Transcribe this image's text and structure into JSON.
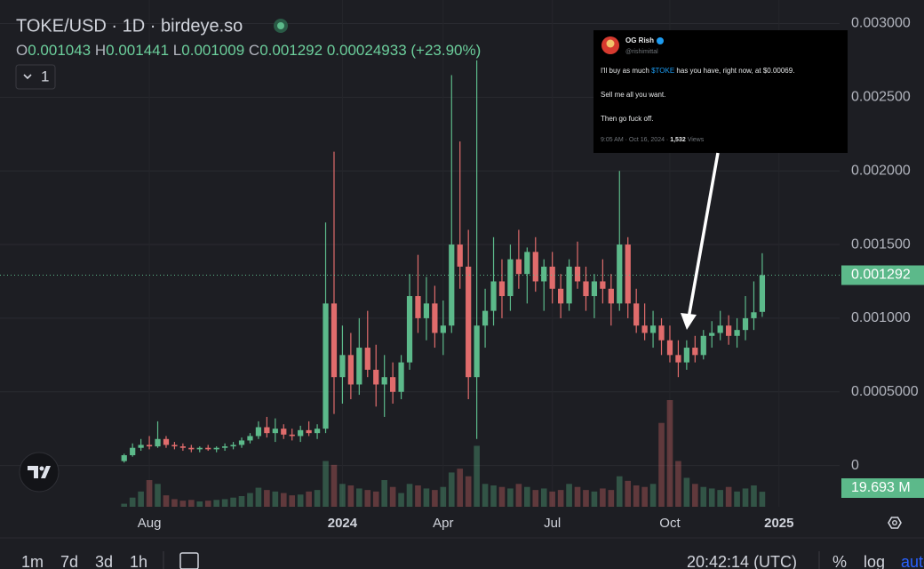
{
  "chart_data": {
    "type": "candlestick",
    "title": "TOKE/USD · 1D · birdeye.so",
    "ohlc_legend": [
      {
        "key": "O",
        "value": "0.001043"
      },
      {
        "key": "H",
        "value": "0.001441"
      },
      {
        "key": "L",
        "value": "0.001009"
      },
      {
        "key": "C",
        "value": "0.001292"
      }
    ],
    "change": "0.00024933 (+23.90%)",
    "interval_button": "1",
    "categories": [
      null,
      null,
      null,
      "Aug",
      null,
      null,
      null,
      null,
      null,
      null,
      null,
      null,
      null,
      null,
      null,
      null,
      null,
      null,
      null,
      null,
      null,
      null,
      null,
      null,
      null,
      null,
      "2024",
      null,
      null,
      null,
      null,
      null,
      null,
      null,
      null,
      null,
      null,
      null,
      "Apr",
      null,
      null,
      null,
      null,
      null,
      null,
      null,
      null,
      null,
      null,
      null,
      null,
      "Jul",
      null,
      null,
      null,
      null,
      null,
      null,
      null,
      null,
      null,
      null,
      null,
      null,
      null,
      "Oct",
      null,
      null,
      null,
      null,
      null,
      null,
      null,
      null,
      null,
      null,
      null,
      null,
      "2025"
    ],
    "open": [
      3e-05,
      7e-05,
      0.00012,
      0.00014,
      0.00013,
      0.00018,
      0.00014,
      0.00013,
      0.00012,
      0.00011,
      0.00012,
      0.00011,
      0.00012,
      0.00013,
      0.00014,
      0.00017,
      0.0002,
      0.00026,
      0.00022,
      0.00025,
      0.00021,
      0.0002,
      0.00024,
      0.00022,
      0.00025,
      0.0011,
      0.0006,
      0.00075,
      0.00055,
      0.0008,
      0.00065,
      0.00055,
      0.0006,
      0.0005,
      0.0007,
      0.00115,
      0.001,
      0.0011,
      0.0009,
      0.00095,
      0.0015,
      0.00135,
      0.0006,
      0.00095,
      0.00105,
      0.00125,
      0.00115,
      0.0014,
      0.0013,
      0.00145,
      0.00125,
      0.00135,
      0.0012,
      0.0011,
      0.00135,
      0.00125,
      0.00115,
      0.00125,
      0.0012,
      0.0011,
      0.0015,
      0.0011,
      0.00095,
      0.0009,
      0.00095,
      0.00085,
      0.00075,
      0.0007,
      0.0008,
      0.00075,
      0.00088,
      0.0009,
      0.00095,
      0.00088,
      0.00092,
      0.001,
      0.001043,
      null,
      null
    ],
    "high": [
      8e-05,
      0.00015,
      0.00018,
      0.0002,
      0.0003,
      0.0002,
      0.00016,
      0.00015,
      0.00014,
      0.00013,
      0.00014,
      0.00013,
      0.00015,
      0.00016,
      0.00019,
      0.00022,
      0.0003,
      0.00033,
      0.00032,
      0.00028,
      0.00025,
      0.00027,
      0.0003,
      0.00028,
      0.00165,
      0.00213,
      0.00095,
      0.0009,
      0.001,
      0.00105,
      0.00082,
      0.00075,
      0.0007,
      0.00075,
      0.0013,
      0.00143,
      0.00128,
      0.00122,
      0.00112,
      0.00265,
      0.0022,
      0.0016,
      0.00275,
      0.0012,
      0.00155,
      0.0014,
      0.0015,
      0.0016,
      0.00148,
      0.00155,
      0.0014,
      0.00145,
      0.0013,
      0.0014,
      0.00152,
      0.00135,
      0.0013,
      0.0014,
      0.0013,
      0.002,
      0.00155,
      0.0012,
      0.0011,
      0.00105,
      0.001,
      0.00095,
      0.00085,
      0.00085,
      0.00088,
      0.00092,
      0.00098,
      0.00105,
      0.00102,
      0.001,
      0.00115,
      0.00125,
      0.001441,
      null,
      null
    ],
    "low": [
      2e-05,
      6e-05,
      0.0001,
      0.00011,
      0.00012,
      0.00012,
      0.00011,
      0.0001,
      9e-05,
      9e-05,
      0.0001,
      9e-05,
      0.0001,
      0.00011,
      0.00012,
      0.00015,
      0.00018,
      0.00019,
      0.00016,
      0.00018,
      0.00017,
      0.00016,
      0.0002,
      0.00018,
      0.00022,
      0.00035,
      0.00042,
      0.00045,
      0.00048,
      0.0006,
      0.0004,
      0.00033,
      0.00042,
      0.00045,
      0.00065,
      0.0009,
      0.00085,
      0.0008,
      0.00075,
      0.0009,
      0.0012,
      0.00045,
      0.00018,
      0.0008,
      0.00095,
      0.001,
      0.00105,
      0.0012,
      0.0011,
      0.00118,
      0.00105,
      0.0011,
      0.001,
      0.00105,
      0.0012,
      0.00105,
      0.001,
      0.0011,
      0.00095,
      0.00105,
      0.001,
      0.0009,
      0.00085,
      0.0008,
      0.00075,
      0.0007,
      0.0006,
      0.00065,
      0.0007,
      0.00072,
      0.0008,
      0.00085,
      0.00082,
      0.0008,
      0.00085,
      0.00092,
      0.001009,
      null,
      null
    ],
    "close": [
      7e-05,
      0.00012,
      0.00014,
      0.00013,
      0.00018,
      0.00014,
      0.00013,
      0.00012,
      0.00011,
      0.00012,
      0.00011,
      0.00012,
      0.00013,
      0.00014,
      0.00017,
      0.0002,
      0.00026,
      0.00022,
      0.00025,
      0.00021,
      0.0002,
      0.00024,
      0.00022,
      0.00025,
      0.0011,
      0.0006,
      0.00075,
      0.00055,
      0.0008,
      0.00065,
      0.00055,
      0.0006,
      0.0005,
      0.0007,
      0.00115,
      0.001,
      0.0011,
      0.0009,
      0.00095,
      0.0015,
      0.00135,
      0.0006,
      0.00095,
      0.00105,
      0.00125,
      0.00115,
      0.0014,
      0.0013,
      0.00145,
      0.00125,
      0.00135,
      0.0012,
      0.0011,
      0.00135,
      0.00125,
      0.00115,
      0.00125,
      0.0012,
      0.0011,
      0.0015,
      0.0011,
      0.00095,
      0.0009,
      0.00095,
      0.00085,
      0.00075,
      0.0007,
      0.0008,
      0.00075,
      0.00088,
      0.0009,
      0.00095,
      0.00088,
      0.00092,
      0.001,
      0.00104,
      0.001292,
      null,
      null
    ],
    "volume": {
      "values": [
        4,
        12,
        20,
        35,
        30,
        15,
        10,
        8,
        9,
        7,
        8,
        9,
        10,
        12,
        14,
        18,
        25,
        22,
        20,
        18,
        15,
        16,
        20,
        22,
        60,
        55,
        30,
        28,
        24,
        22,
        20,
        35,
        26,
        18,
        30,
        28,
        24,
        22,
        26,
        45,
        50,
        40,
        80,
        30,
        28,
        26,
        24,
        30,
        26,
        22,
        24,
        20,
        22,
        30,
        26,
        22,
        20,
        24,
        22,
        40,
        34,
        28,
        26,
        30,
        110,
        140,
        60,
        38,
        30,
        26,
        24,
        22,
        26,
        20,
        24,
        28,
        19.693,
        null,
        null
      ],
      "value_labels": [
        null,
        null,
        null,
        null,
        null,
        null,
        null,
        null,
        null,
        null,
        null,
        null,
        null,
        null,
        null,
        null,
        null,
        null,
        null,
        null,
        null,
        null,
        null,
        null,
        null,
        null,
        null,
        null,
        null,
        null,
        null,
        null,
        null,
        null,
        null,
        null,
        null,
        null,
        null,
        null,
        null,
        null,
        null,
        null,
        null,
        null,
        null,
        null,
        null,
        null,
        null,
        null,
        null,
        null,
        null,
        null,
        null,
        null,
        null,
        null,
        null,
        null,
        null,
        null,
        null,
        null,
        null,
        null,
        null,
        null,
        null,
        null,
        null,
        null,
        null,
        null,
        "19.693 M",
        null,
        null
      ]
    },
    "last_price": 0.001292,
    "ylim": [
      -0.00028,
      0.00316
    ],
    "yticks": [
      0,
      {
        "value": 0.0005,
        "label": "0.0005000"
      },
      {
        "value": 0.001,
        "label": "0.001000"
      },
      {
        "value": 0.0015,
        "label": "0.001500"
      },
      {
        "value": 0.002,
        "label": "0.002000"
      },
      {
        "value": 0.0025,
        "label": "0.002500"
      },
      {
        "value": 0.003,
        "label": "0.003000"
      }
    ],
    "grid": true,
    "up_color": "#5cb98a",
    "down_color": "#e06c6c",
    "tweet": {
      "name": "OG Rish",
      "handle": "@rishimittal",
      "text_before": "I'll buy as much ",
      "text_link": "$TOKE",
      "text_after": " has you have, right now, at $0.00069.",
      "line2": "Sell me all you want.",
      "line3": "Then go fuck off.",
      "meta": "9:05 AM · Oct 16, 2024 · ",
      "views": "1,532",
      "views_label": " Views"
    },
    "toolbar": {
      "ranges": [
        "1m",
        "7d",
        "3d",
        "1h"
      ],
      "time": "20:42:14 (UTC)",
      "options": [
        "%",
        "log",
        "auto"
      ]
    }
  }
}
